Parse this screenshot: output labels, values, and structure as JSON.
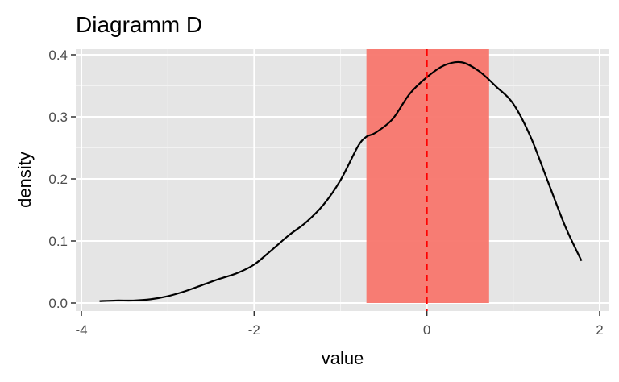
{
  "chart_data": {
    "type": "density",
    "title": "Diagramm D",
    "xlabel": "value",
    "ylabel": "density",
    "xlim": [
      -4,
      2
    ],
    "ylim": [
      0,
      0.4
    ],
    "x_ticks": [
      {
        "value": -4,
        "label": "-4"
      },
      {
        "value": -2,
        "label": "-2"
      },
      {
        "value": 0,
        "label": "0"
      },
      {
        "value": 2,
        "label": "2"
      }
    ],
    "y_ticks": [
      {
        "value": 0.0,
        "label": "0.0"
      },
      {
        "value": 0.1,
        "label": "0.1"
      },
      {
        "value": 0.2,
        "label": "0.2"
      },
      {
        "value": 0.3,
        "label": "0.3"
      },
      {
        "value": 0.4,
        "label": "0.4"
      }
    ],
    "grid": true,
    "panel_background": "#e5e5e5",
    "curve_color": "#000000",
    "curve": [
      [
        -3.79,
        0.003
      ],
      [
        -3.6,
        0.004
      ],
      [
        -3.4,
        0.004
      ],
      [
        -3.2,
        0.006
      ],
      [
        -3.0,
        0.011
      ],
      [
        -2.8,
        0.019
      ],
      [
        -2.6,
        0.029
      ],
      [
        -2.4,
        0.039
      ],
      [
        -2.2,
        0.048
      ],
      [
        -2.0,
        0.062
      ],
      [
        -1.8,
        0.085
      ],
      [
        -1.6,
        0.109
      ],
      [
        -1.4,
        0.13
      ],
      [
        -1.2,
        0.158
      ],
      [
        -1.0,
        0.198
      ],
      [
        -0.8,
        0.252
      ],
      [
        -0.7,
        0.268
      ],
      [
        -0.6,
        0.274
      ],
      [
        -0.4,
        0.296
      ],
      [
        -0.2,
        0.337
      ],
      [
        0.0,
        0.364
      ],
      [
        0.2,
        0.383
      ],
      [
        0.4,
        0.388
      ],
      [
        0.6,
        0.374
      ],
      [
        0.8,
        0.349
      ],
      [
        1.0,
        0.321
      ],
      [
        1.2,
        0.268
      ],
      [
        1.4,
        0.196
      ],
      [
        1.6,
        0.124
      ],
      [
        1.79,
        0.068
      ]
    ],
    "shaded_region": {
      "xmin": -0.7,
      "xmax": 0.72,
      "color": "#f8766d",
      "opacity": 0.95
    },
    "reference_line": {
      "x": 0,
      "style": "dashed",
      "color": "#ff0000"
    }
  }
}
